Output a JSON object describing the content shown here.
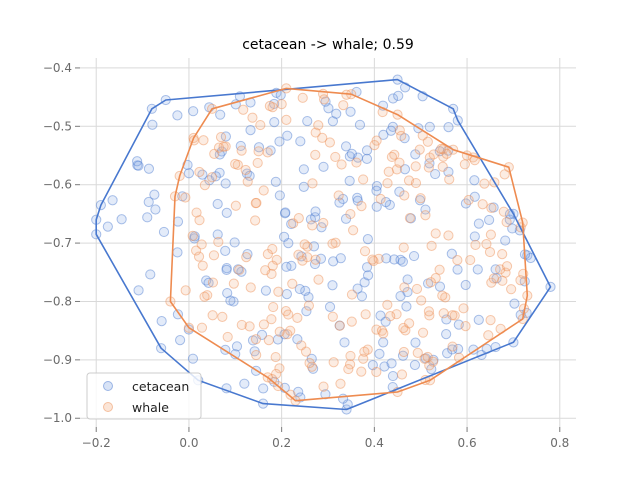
{
  "chart_data": {
    "type": "scatter",
    "title": "cetacean -> whale; 0.59",
    "xlabel": "",
    "ylabel": "",
    "xlim": [
      -0.235,
      0.835
    ],
    "ylim": [
      -1.015,
      -0.383
    ],
    "xticks": [
      -0.2,
      0.0,
      0.2,
      0.4,
      0.6,
      0.8
    ],
    "xtick_labels": [
      "−0.2",
      "0.0",
      "0.2",
      "0.4",
      "0.6",
      "0.8"
    ],
    "yticks": [
      -0.4,
      -0.5,
      -0.6,
      -0.7,
      -0.8,
      -0.9,
      -1.0
    ],
    "ytick_labels": [
      "−0.4",
      "−0.5",
      "−0.6",
      "−0.7",
      "−0.8",
      "−0.9",
      "−1.0"
    ],
    "grid": true,
    "legend_position": "lower-left",
    "series": [
      {
        "name": "cetacean",
        "color": "#4878cf",
        "hull": [
          [
            -0.2,
            -0.66
          ],
          [
            -0.19,
            -0.635
          ],
          [
            -0.08,
            -0.47
          ],
          [
            -0.05,
            -0.455
          ],
          [
            0.45,
            -0.42
          ],
          [
            0.57,
            -0.47
          ],
          [
            0.58,
            -0.49
          ],
          [
            0.7,
            -0.65
          ],
          [
            0.78,
            -0.775
          ],
          [
            0.7,
            -0.87
          ],
          [
            0.34,
            -0.985
          ],
          [
            0.16,
            -0.975
          ],
          [
            0.02,
            -0.935
          ],
          [
            -0.06,
            -0.88
          ],
          [
            -0.2,
            -0.685
          ]
        ],
        "region": {
          "x": [
            -0.2,
            0.78
          ],
          "y": [
            -0.98,
            -0.42
          ]
        },
        "count": 240
      },
      {
        "name": "whale",
        "color": "#ee8b50",
        "hull": [
          [
            -0.04,
            -0.8
          ],
          [
            -0.03,
            -0.62
          ],
          [
            -0.02,
            -0.585
          ],
          [
            0.01,
            -0.52
          ],
          [
            0.05,
            -0.47
          ],
          [
            0.21,
            -0.435
          ],
          [
            0.35,
            -0.445
          ],
          [
            0.45,
            -0.48
          ],
          [
            0.57,
            -0.54
          ],
          [
            0.69,
            -0.57
          ],
          [
            0.72,
            -0.665
          ],
          [
            0.73,
            -0.79
          ],
          [
            0.72,
            -0.83
          ],
          [
            0.52,
            -0.935
          ],
          [
            0.45,
            -0.955
          ],
          [
            0.23,
            -0.97
          ],
          [
            0.17,
            -0.93
          ],
          [
            0.0,
            -0.845
          ]
        ],
        "region": {
          "x": [
            -0.03,
            0.73
          ],
          "y": [
            -0.965,
            -0.44
          ]
        },
        "count": 240
      }
    ]
  }
}
